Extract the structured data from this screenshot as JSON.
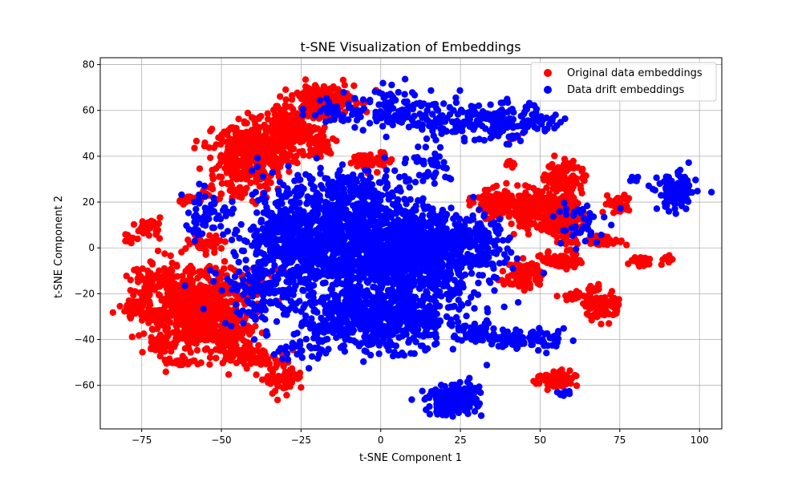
{
  "chart_data": {
    "type": "scatter",
    "title": "t-SNE Visualization of Embeddings",
    "xlabel": "t-SNE Component 1",
    "ylabel": "t-SNE Component 2",
    "xlim": [
      -88,
      107
    ],
    "ylim": [
      -79,
      83
    ],
    "xticks": [
      -75,
      -50,
      -25,
      0,
      25,
      50,
      75,
      100
    ],
    "yticks": [
      -60,
      -40,
      -20,
      0,
      20,
      40,
      60,
      80
    ],
    "grid": true,
    "legend_position": "top-right",
    "series": [
      {
        "name": "Original data embeddings",
        "color": "#ff0000",
        "clusters": [
          {
            "cx": -58,
            "cy": -27,
            "sx": 8,
            "sy": 9,
            "n": 700
          },
          {
            "cx": -72,
            "cy": -15,
            "sx": 3,
            "sy": 4,
            "n": 60
          },
          {
            "cx": -77,
            "cy": -27,
            "sx": 2,
            "sy": 2,
            "n": 40
          },
          {
            "cx": -70,
            "cy": -42,
            "sx": 2,
            "sy": 2,
            "n": 30
          },
          {
            "cx": -62,
            "cy": -50,
            "sx": 3,
            "sy": 1,
            "n": 25
          },
          {
            "cx": -48,
            "cy": -35,
            "sx": 4,
            "sy": 6,
            "n": 120
          },
          {
            "cx": -40,
            "cy": -48,
            "sx": 5,
            "sy": 2,
            "n": 70
          },
          {
            "cx": -30,
            "cy": -58,
            "sx": 3,
            "sy": 3,
            "n": 60
          },
          {
            "cx": -73,
            "cy": 9,
            "sx": 2,
            "sy": 2,
            "n": 30
          },
          {
            "cx": -79,
            "cy": 4,
            "sx": 1,
            "sy": 1,
            "n": 12
          },
          {
            "cx": -60,
            "cy": 21,
            "sx": 2,
            "sy": 1,
            "n": 15
          },
          {
            "cx": -55,
            "cy": 2,
            "sx": 3,
            "sy": 2,
            "n": 30
          },
          {
            "cx": -40,
            "cy": 42,
            "sx": 6,
            "sy": 6,
            "n": 450
          },
          {
            "cx": -28,
            "cy": 52,
            "sx": 4,
            "sy": 4,
            "n": 150
          },
          {
            "cx": -18,
            "cy": 64,
            "sx": 5,
            "sy": 4,
            "n": 220
          },
          {
            "cx": -20,
            "cy": 45,
            "sx": 3,
            "sy": 3,
            "n": 60
          },
          {
            "cx": -3,
            "cy": 38,
            "sx": 3,
            "sy": 2,
            "n": 60
          },
          {
            "cx": -45,
            "cy": 25,
            "sx": 5,
            "sy": 3,
            "n": 60
          },
          {
            "cx": -38,
            "cy": -15,
            "sx": 4,
            "sy": 3,
            "n": 40
          },
          {
            "cx": 35,
            "cy": 20,
            "sx": 3,
            "sy": 3,
            "n": 110
          },
          {
            "cx": 47,
            "cy": 17,
            "sx": 4,
            "sy": 4,
            "n": 200
          },
          {
            "cx": 57,
            "cy": 13,
            "sx": 3,
            "sy": 5,
            "n": 180
          },
          {
            "cx": 58,
            "cy": 31,
            "sx": 3,
            "sy": 4,
            "n": 80
          },
          {
            "cx": 45,
            "cy": -12,
            "sx": 3,
            "sy": 3,
            "n": 90
          },
          {
            "cx": 57,
            "cy": -5,
            "sx": 3,
            "sy": 2,
            "n": 60
          },
          {
            "cx": 70,
            "cy": 3,
            "sx": 3,
            "sy": 1,
            "n": 50
          },
          {
            "cx": 74,
            "cy": 19,
            "sx": 2,
            "sy": 2,
            "n": 40
          },
          {
            "cx": 70,
            "cy": -26,
            "sx": 3,
            "sy": 3,
            "n": 70
          },
          {
            "cx": 82,
            "cy": -6,
            "sx": 2,
            "sy": 1,
            "n": 30
          },
          {
            "cx": 90,
            "cy": -5,
            "sx": 1,
            "sy": 1,
            "n": 12
          },
          {
            "cx": 55,
            "cy": -58,
            "sx": 3,
            "sy": 2,
            "n": 80
          },
          {
            "cx": 60,
            "cy": -21,
            "sx": 2,
            "sy": 1,
            "n": 25
          },
          {
            "cx": 67,
            "cy": -18,
            "sx": 1,
            "sy": 1,
            "n": 10
          },
          {
            "cx": 40,
            "cy": 36,
            "sx": 1,
            "sy": 1,
            "n": 8
          },
          {
            "cx": 42,
            "cy": 48,
            "sx": 1,
            "sy": 1,
            "n": 6
          }
        ]
      },
      {
        "name": "Data drift embeddings",
        "color": "#0000ff",
        "clusters": [
          {
            "cx": -5,
            "cy": 0,
            "sx": 17,
            "sy": 11,
            "n": 1400
          },
          {
            "cx": 0,
            "cy": -30,
            "sx": 13,
            "sy": 7,
            "n": 700
          },
          {
            "cx": 15,
            "cy": 0,
            "sx": 9,
            "sy": 9,
            "n": 350
          },
          {
            "cx": -30,
            "cy": 5,
            "sx": 7,
            "sy": 10,
            "n": 250
          },
          {
            "cx": -10,
            "cy": 25,
            "sx": 9,
            "sy": 5,
            "n": 180
          },
          {
            "cx": 5,
            "cy": 60,
            "sx": 8,
            "sy": 5,
            "n": 120
          },
          {
            "cx": 25,
            "cy": 55,
            "sx": 8,
            "sy": 4,
            "n": 120
          },
          {
            "cx": 40,
            "cy": 55,
            "sx": 5,
            "sy": 4,
            "n": 90
          },
          {
            "cx": 50,
            "cy": 55,
            "sx": 4,
            "sy": 2,
            "n": 30
          },
          {
            "cx": 93,
            "cy": 24,
            "sx": 3,
            "sy": 4,
            "n": 120
          },
          {
            "cx": 22,
            "cy": -67,
            "sx": 4,
            "sy": 3,
            "n": 160
          },
          {
            "cx": 27,
            "cy": -62,
            "sx": 2,
            "sy": 2,
            "n": 40
          },
          {
            "cx": 42,
            "cy": -40,
            "sx": 4,
            "sy": 2,
            "n": 60
          },
          {
            "cx": 53,
            "cy": -40,
            "sx": 3,
            "sy": 2,
            "n": 30
          },
          {
            "cx": 30,
            "cy": -38,
            "sx": 3,
            "sy": 2,
            "n": 40
          },
          {
            "cx": -55,
            "cy": 15,
            "sx": 4,
            "sy": 5,
            "n": 50
          },
          {
            "cx": -40,
            "cy": -20,
            "sx": 5,
            "sy": 7,
            "n": 90
          },
          {
            "cx": -15,
            "cy": 60,
            "sx": 4,
            "sy": 3,
            "n": 25
          },
          {
            "cx": 30,
            "cy": 5,
            "sx": 4,
            "sy": 6,
            "n": 80
          },
          {
            "cx": 62,
            "cy": 10,
            "sx": 4,
            "sy": 6,
            "n": 40
          },
          {
            "cx": 79,
            "cy": 30,
            "sx": 1,
            "sy": 1,
            "n": 6
          },
          {
            "cx": 57,
            "cy": -63,
            "sx": 2,
            "sy": 1,
            "n": 8
          },
          {
            "cx": 15,
            "cy": 35,
            "sx": 5,
            "sy": 4,
            "n": 40
          },
          {
            "cx": -25,
            "cy": -45,
            "sx": 4,
            "sy": 3,
            "n": 30
          }
        ]
      }
    ]
  }
}
